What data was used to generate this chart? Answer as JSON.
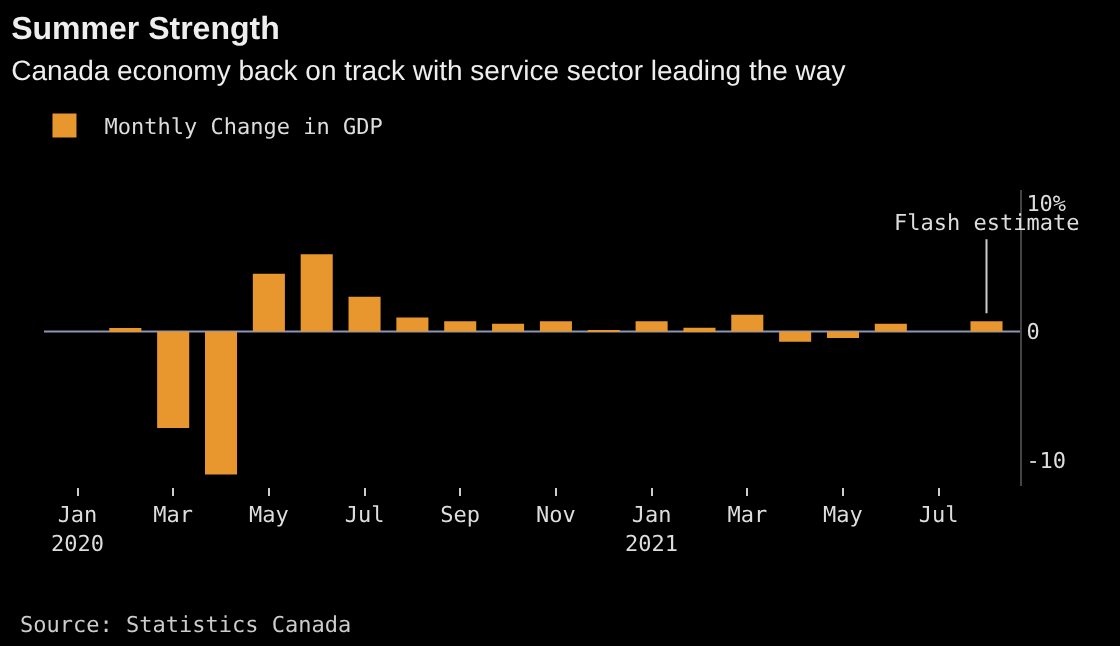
{
  "chart_data": {
    "type": "bar",
    "title": "Summer Strength",
    "subtitle": "Canada economy back on track with service sector leading the way",
    "categories": [
      "Jan 2020",
      null,
      "Mar",
      null,
      "May",
      null,
      "Jul",
      null,
      "Sep",
      null,
      "Nov",
      null,
      "Jan 2021",
      null,
      "Mar",
      null,
      "May",
      null,
      "Jul",
      null
    ],
    "series": [
      {
        "name": "Monthly Change in GDP",
        "color": "#e8962e",
        "values": [
          0.0,
          0.2,
          -7.5,
          -11.1,
          4.5,
          6.0,
          2.7,
          1.1,
          0.8,
          0.6,
          0.8,
          0.1,
          0.8,
          0.3,
          1.3,
          -0.8,
          -0.5,
          0.6,
          0.0,
          0.8
        ]
      }
    ],
    "ylim": [
      -12,
      11
    ],
    "yticks": [
      {
        "value": 10,
        "label": "10%"
      },
      0,
      -10
    ],
    "grid": false,
    "legend": "top left",
    "ref_lines": [
      {
        "axis": "y",
        "value": 0,
        "color": "#8a96b0"
      }
    ],
    "annotations": [
      {
        "text": "Flash estimate",
        "y": 0.8
      },
      "Source: Statistics Canada"
    ]
  }
}
